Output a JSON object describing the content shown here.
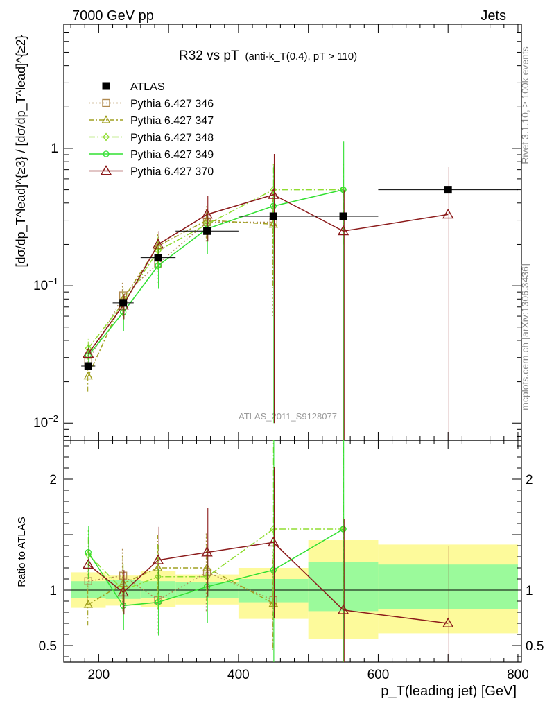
{
  "header": {
    "left": "7000 GeV pp",
    "right": "Jets"
  },
  "title_main": "R32 vs pT",
  "title_sub": "(anti-k_T(0.4), pT > 110)",
  "side_notes": {
    "rivet": "Rivet 3.1.10, ≥ 100k events",
    "mcplots": "mcplots.cern.ch [arXiv:1306.3436]"
  },
  "watermark": "ATLAS_2011_S9128077",
  "chart_data": [
    {
      "type": "line",
      "panel": "main",
      "ylabel": "[dσ/dp_T^lead]^{≥3} / [dσ/dp_T^lead]^{≥2}",
      "yscale": "log",
      "ylim": [
        0.0075,
        8
      ],
      "xlim": [
        150,
        805
      ],
      "x_ticks": [
        200,
        400,
        600,
        800
      ],
      "y_ticks": [
        {
          "value": 0.01,
          "label": "10^-2"
        },
        {
          "value": 0.1,
          "label": "10^-1"
        },
        {
          "value": 1,
          "label": "1"
        }
      ],
      "legend_position": "top-left",
      "data_series": {
        "name": "ATLAS",
        "color": "#000000",
        "points": [
          {
            "x": 185,
            "y": 0.026,
            "xerr": 10
          },
          {
            "x": 235,
            "y": 0.075,
            "xerr": 15
          },
          {
            "x": 285,
            "y": 0.16,
            "xerr": 25
          },
          {
            "x": 355,
            "y": 0.25,
            "xerr": 45
          },
          {
            "x": 450,
            "y": 0.32,
            "xerr": 50
          },
          {
            "x": 550,
            "y": 0.32,
            "xerr": 50
          },
          {
            "x": 700,
            "y": 0.5,
            "xerr": 100
          }
        ]
      },
      "series": [
        {
          "name": "Pythia 6.427 346",
          "color": "#b08a50",
          "dash": "2,3",
          "marker": "square",
          "x": [
            185,
            235,
            285,
            355,
            450
          ],
          "y": [
            0.028,
            0.085,
            0.145,
            0.29,
            0.29
          ],
          "err_low": [
            0.005,
            0.02,
            0.04,
            0.08,
            0.23
          ],
          "err_high": [
            0.005,
            0.02,
            0.04,
            0.08,
            0.23
          ]
        },
        {
          "name": "Pythia 6.427 347",
          "color": "#a0a020",
          "dash": "7,3,2,3",
          "marker": "triangle",
          "x": [
            185,
            235,
            285,
            355,
            450
          ],
          "y": [
            0.022,
            0.08,
            0.195,
            0.3,
            0.28
          ],
          "err_low": [
            0.005,
            0.02,
            0.05,
            0.08,
            0.18
          ],
          "err_high": [
            0.005,
            0.02,
            0.05,
            0.08,
            0.18
          ]
        },
        {
          "name": "Pythia 6.427 348",
          "color": "#90dd30",
          "dash": "9,3,2,3",
          "marker": "diamond",
          "x": [
            185,
            235,
            285,
            355,
            450,
            550
          ],
          "y": [
            0.035,
            0.075,
            0.18,
            0.28,
            0.5,
            0.5
          ],
          "err_low": [
            0.006,
            0.02,
            0.05,
            0.08,
            0.3,
            0.3
          ],
          "err_high": [
            0.006,
            0.02,
            0.05,
            0.08,
            0.3,
            0.3
          ]
        },
        {
          "name": "Pythia 6.427 349",
          "color": "#30e030",
          "dash": "",
          "marker": "circle",
          "x": [
            185,
            235,
            285,
            355,
            450,
            550
          ],
          "y": [
            0.031,
            0.064,
            0.14,
            0.26,
            0.38,
            0.5
          ],
          "err_low": [
            0.006,
            0.017,
            0.045,
            0.09,
            0.37,
            0.5
          ],
          "err_high": [
            0.006,
            0.017,
            0.045,
            0.09,
            0.37,
            0.62
          ]
        },
        {
          "name": "Pythia 6.427 370",
          "color": "#8b1a1a",
          "dash": "",
          "marker": "triangle-open",
          "x": [
            185,
            235,
            285,
            355,
            450,
            550,
            700
          ],
          "y": [
            0.032,
            0.072,
            0.2,
            0.33,
            0.46,
            0.25,
            0.33
          ],
          "err_low": [
            0.006,
            0.015,
            0.05,
            0.12,
            0.45,
            0.25,
            0.33
          ],
          "err_high": [
            0.006,
            0.015,
            0.05,
            0.12,
            0.45,
            0.25,
            0.4
          ]
        }
      ]
    },
    {
      "type": "line",
      "panel": "ratio",
      "xlabel": "p_T(leading jet) [GeV]",
      "ylabel": "Ratio to ATLAS",
      "ylim": [
        0.35,
        2.35
      ],
      "xlim": [
        150,
        805
      ],
      "y_ticks": [
        {
          "value": 0.5,
          "label": "0.5"
        },
        {
          "value": 1,
          "label": "1"
        },
        {
          "value": 2,
          "label": "2"
        }
      ],
      "bands": [
        {
          "x0": 160,
          "x1": 210,
          "g_lo": 0.93,
          "g_hi": 1.08,
          "y_lo": 0.84,
          "y_hi": 1.16
        },
        {
          "x0": 210,
          "x1": 260,
          "g_lo": 0.92,
          "g_hi": 1.09,
          "y_lo": 0.86,
          "y_hi": 1.13
        },
        {
          "x0": 260,
          "x1": 310,
          "g_lo": 0.93,
          "g_hi": 1.08,
          "y_lo": 0.85,
          "y_hi": 1.17
        },
        {
          "x0": 310,
          "x1": 400,
          "g_lo": 0.93,
          "g_hi": 1.07,
          "y_lo": 0.87,
          "y_hi": 1.14
        },
        {
          "x0": 400,
          "x1": 500,
          "g_lo": 0.89,
          "g_hi": 1.1,
          "y_lo": 0.74,
          "y_hi": 1.2
        },
        {
          "x0": 500,
          "x1": 600,
          "g_lo": 0.81,
          "g_hi": 1.25,
          "y_lo": 0.56,
          "y_hi": 1.45
        },
        {
          "x0": 600,
          "x1": 800,
          "g_lo": 0.83,
          "g_hi": 1.23,
          "y_lo": 0.61,
          "y_hi": 1.41
        }
      ],
      "series": [
        {
          "name": "Pythia 6.427 346",
          "x": [
            185,
            235,
            285,
            355,
            450
          ],
          "y": [
            1.08,
            1.13,
            0.91,
            1.16,
            0.91
          ],
          "err_low": [
            0.2,
            0.24,
            0.3,
            0.35,
            0.45
          ],
          "err_high": [
            0.2,
            0.24,
            0.3,
            0.35,
            0.45
          ]
        },
        {
          "name": "Pythia 6.427 347",
          "x": [
            185,
            235,
            285,
            355,
            450
          ],
          "y": [
            0.87,
            1.06,
            1.2,
            1.2,
            0.88
          ],
          "err_low": [
            0.19,
            0.25,
            0.3,
            0.3,
            0.4
          ],
          "err_high": [
            0.19,
            0.25,
            0.3,
            0.3,
            0.4
          ]
        },
        {
          "name": "Pythia 6.427 348",
          "x": [
            185,
            235,
            285,
            355,
            450,
            550
          ],
          "y": [
            1.32,
            1.0,
            1.12,
            1.12,
            1.55,
            1.55
          ],
          "err_low": [
            0.22,
            0.25,
            0.3,
            0.3,
            0.8,
            0.8
          ],
          "err_high": [
            0.22,
            0.25,
            0.3,
            0.3,
            0.8,
            0.8
          ]
        },
        {
          "name": "Pythia 6.427 349",
          "x": [
            185,
            235,
            285,
            355,
            450,
            550
          ],
          "y": [
            1.34,
            0.86,
            0.89,
            1.03,
            1.18,
            1.55
          ],
          "err_low": [
            0.24,
            0.22,
            0.3,
            0.33,
            1.2,
            1.6
          ],
          "err_high": [
            0.24,
            0.22,
            0.3,
            0.33,
            1.2,
            1.6
          ]
        },
        {
          "name": "Pythia 6.427 370",
          "x": [
            185,
            235,
            285,
            355,
            450,
            550,
            700
          ],
          "y": [
            1.23,
            0.98,
            1.27,
            1.34,
            1.43,
            0.82,
            0.7
          ],
          "err_low": [
            0.22,
            0.2,
            0.3,
            0.4,
            0.68,
            0.82,
            0.7
          ],
          "err_high": [
            0.22,
            0.2,
            0.3,
            0.4,
            0.68,
            0.82,
            0.7
          ]
        }
      ]
    }
  ]
}
